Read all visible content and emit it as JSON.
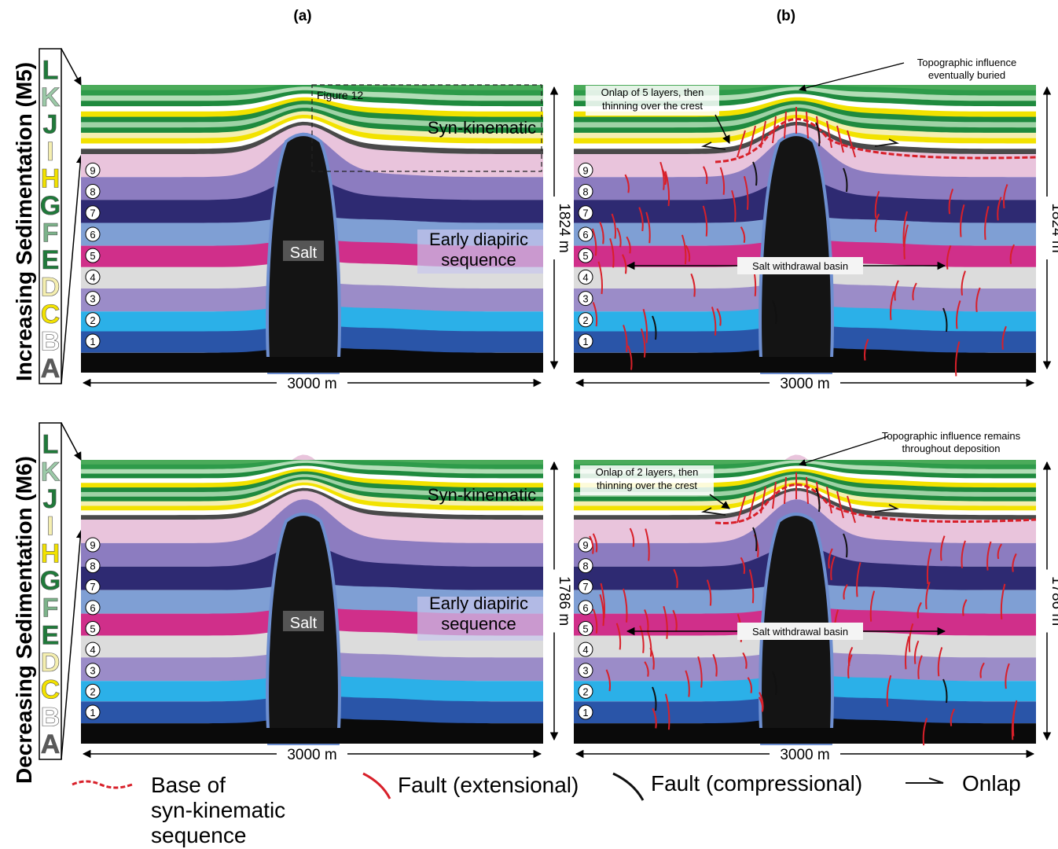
{
  "panel_labels": {
    "a": "(a)",
    "b": "(b)"
  },
  "sequence_letters": [
    "A",
    "B",
    "C",
    "D",
    "E",
    "F",
    "G",
    "H",
    "I",
    "J",
    "K",
    "L"
  ],
  "sequence_letter_colors": {
    "A": "#5a5a5a",
    "B": "#ffffff",
    "C": "#f2e200",
    "D": "#f5efb0",
    "E": "#1f7a3a",
    "F": "#7cb38a",
    "G": "#1f7a3a",
    "H": "#f2e200",
    "I": "#f5efb0",
    "J": "#1f7a3a",
    "K": "#9ccaa8",
    "L": "#1f7a3a"
  },
  "layer_numbers": [
    "1",
    "2",
    "3",
    "4",
    "5",
    "6",
    "7",
    "8",
    "9"
  ],
  "rows": [
    {
      "model_label": "Increasing  Sedimentation (M5)",
      "width_label": "3000 m",
      "height_label": "1824 m",
      "syn_label": "Syn-kinematic",
      "early_label_1": "Early diapiric",
      "early_label_2": "sequence",
      "salt_label": "Salt",
      "figure_ref": "Figure 12",
      "topo_line_1": "Topographic influence",
      "topo_line_2": "eventually buried",
      "onlap_line_1": "Onlap of 5 layers, then",
      "onlap_line_2": "thinning over the crest",
      "basin_label": "Salt withdrawal basin"
    },
    {
      "model_label": "Decreasing  Sedimentation (M6)",
      "width_label": "3000 m",
      "height_label": "1786 m",
      "syn_label": "Syn-kinematic",
      "early_label_1": "Early diapiric",
      "early_label_2": "sequence",
      "salt_label": "Salt",
      "figure_ref": "",
      "topo_line_1": "Topographic influence remains",
      "topo_line_2": "throughout deposition",
      "onlap_line_1": "Onlap of 2 layers, then",
      "onlap_line_2": "thinning over the crest",
      "basin_label": "Salt withdrawal basin"
    }
  ],
  "legend": {
    "base_line_1": "Base of",
    "base_line_2": "syn-kinematic",
    "base_line_3": "sequence",
    "fault_ext": "Fault (extensional)",
    "fault_comp": "Fault (compressional)",
    "onlap": "Onlap"
  },
  "colors": {
    "layer_bottom_to_top": [
      "#0a0a0a",
      "#2a55a8",
      "#2bb0e8",
      "#9b8cc8",
      "#dcdcdc",
      "#d02f8a",
      "#7f9fd4",
      "#2e2a72",
      "#8c7cc0",
      "#e9c4dc"
    ],
    "syn_bottom_to_top": [
      "#4a4a4a",
      "#ffffff",
      "#f2e200",
      "#f5efb0",
      "#1f8a3e",
      "#9fd2a6",
      "#1f8a3e",
      "#f2e200",
      "#ffffff",
      "#1f8a3e",
      "#b2ddb6",
      "#2e9b4a",
      "#4bab5a"
    ],
    "salt": "#141414",
    "fault_ext": "#d8202a",
    "fault_comp": "#111111",
    "base_syn": "#d8202a"
  }
}
